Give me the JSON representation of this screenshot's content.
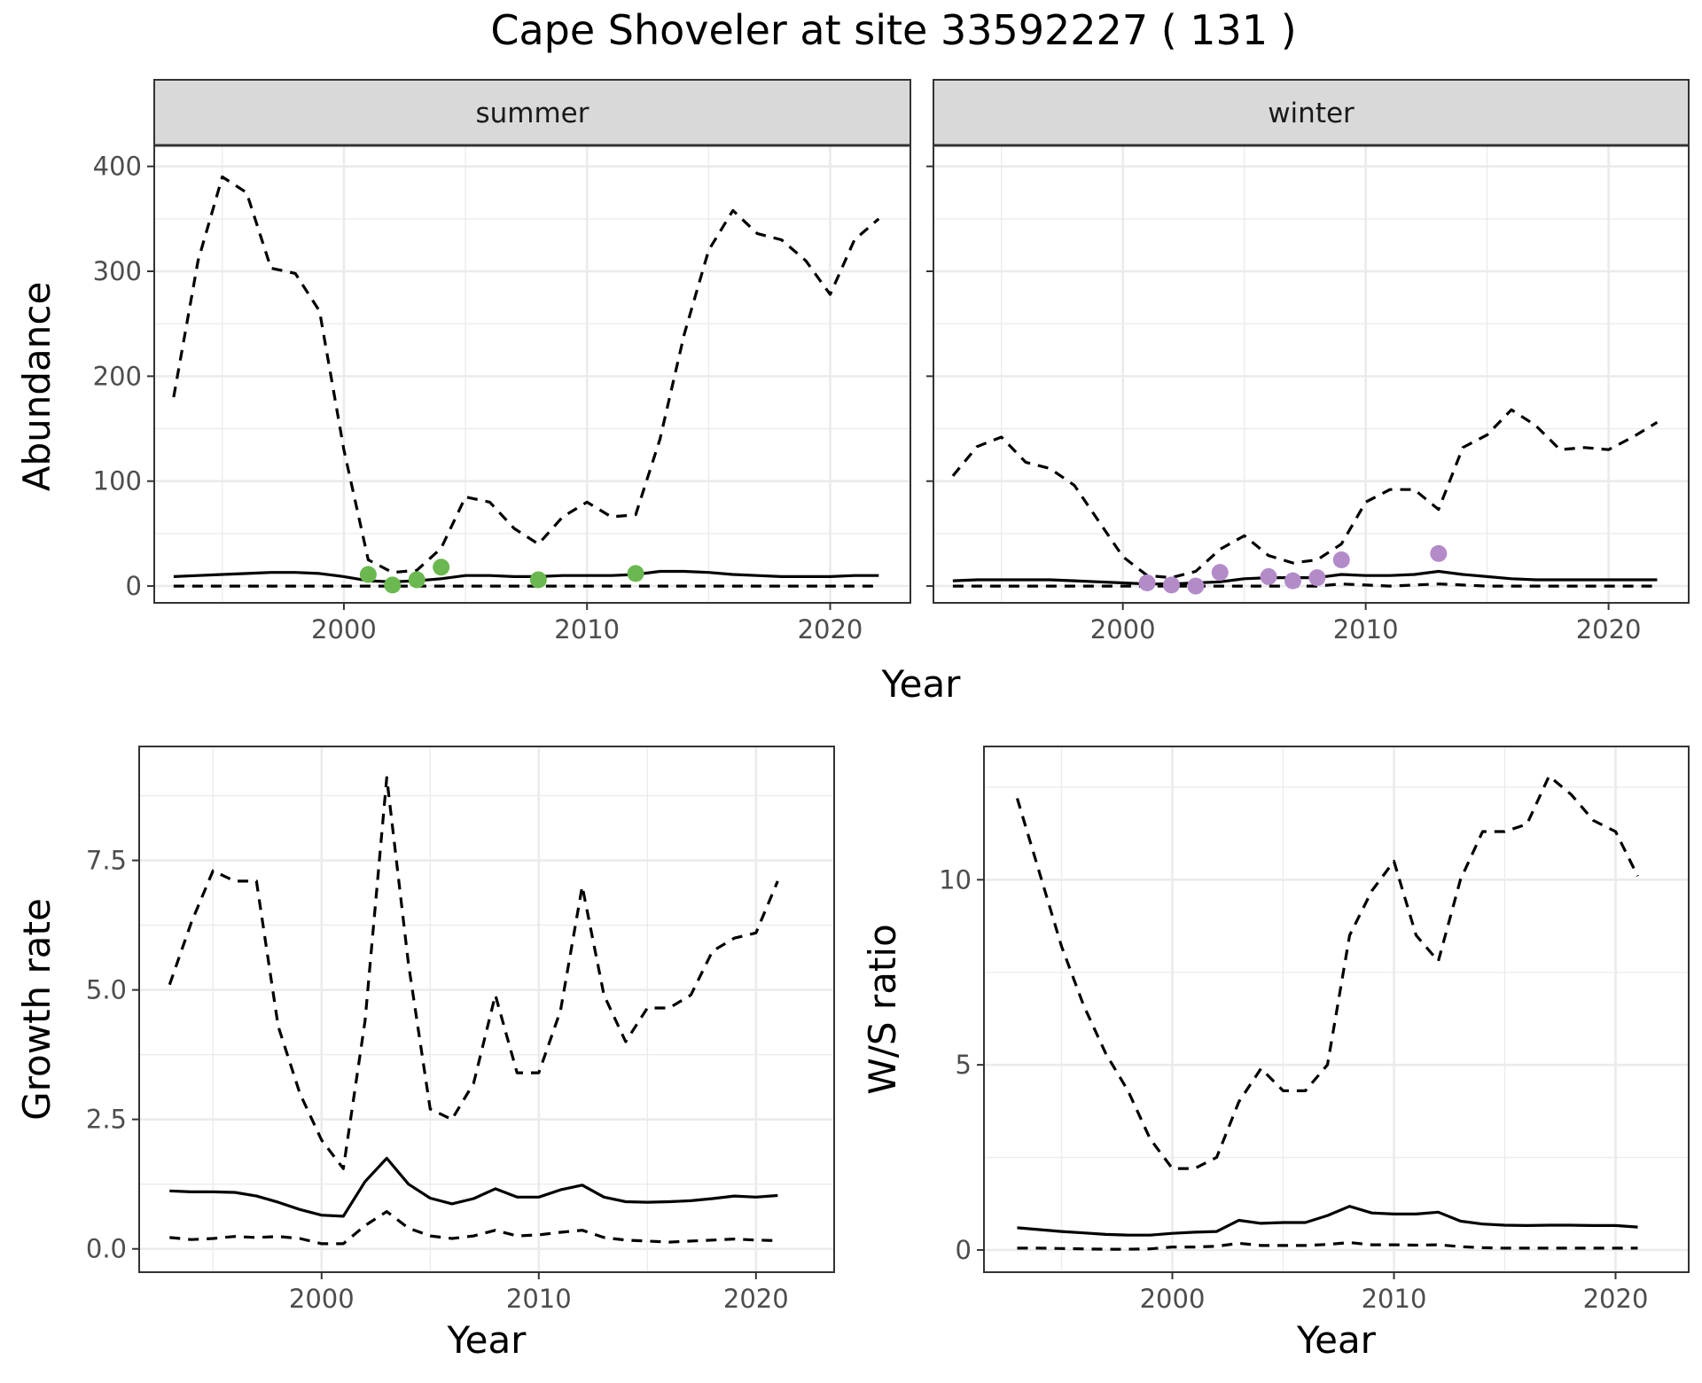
{
  "figure": {
    "title": "Cape Shoveler at site 33592227 ( 131 )"
  },
  "chart_data": [
    {
      "type": "line",
      "panel": "summer",
      "facet_label": "summer",
      "xlabel": "Year",
      "ylabel": "Abundance",
      "xlim": [
        1992.2,
        2023.3
      ],
      "ylim": [
        -16,
        420
      ],
      "xticks": [
        2000,
        2010,
        2020
      ],
      "yticks": [
        0,
        100,
        200,
        300,
        400
      ],
      "grid": true,
      "point_color": "#6ab84f",
      "series": [
        {
          "role": "mean",
          "style": "solid",
          "x": [
            1993,
            1994,
            1995,
            1996,
            1997,
            1998,
            1999,
            2000,
            2001,
            2002,
            2003,
            2004,
            2005,
            2006,
            2007,
            2008,
            2009,
            2010,
            2011,
            2012,
            2013,
            2014,
            2015,
            2016,
            2017,
            2018,
            2019,
            2020,
            2021,
            2022
          ],
          "y": [
            9,
            10,
            11,
            12,
            13,
            13,
            12,
            9,
            5,
            4,
            5,
            7,
            10,
            10,
            9,
            9,
            10,
            10,
            10,
            11,
            14,
            14,
            13,
            11,
            10,
            9,
            9,
            9,
            10,
            10
          ]
        },
        {
          "role": "upper",
          "style": "dashed",
          "x": [
            1993,
            1994,
            1995,
            1996,
            1997,
            1998,
            1999,
            2000,
            2001,
            2002,
            2003,
            2004,
            2005,
            2006,
            2007,
            2008,
            2009,
            2010,
            2011,
            2012,
            2013,
            2014,
            2015,
            2016,
            2017,
            2018,
            2019,
            2020,
            2021,
            2022
          ],
          "y": [
            180,
            310,
            390,
            375,
            303,
            298,
            262,
            130,
            25,
            13,
            15,
            36,
            85,
            80,
            55,
            40,
            66,
            80,
            66,
            68,
            140,
            240,
            320,
            358,
            336,
            330,
            310,
            278,
            330,
            350
          ]
        },
        {
          "role": "lower",
          "style": "dashed",
          "x": [
            1993,
            1994,
            1995,
            1996,
            1997,
            1998,
            1999,
            2000,
            2001,
            2002,
            2003,
            2004,
            2005,
            2006,
            2007,
            2008,
            2009,
            2010,
            2011,
            2012,
            2013,
            2014,
            2015,
            2016,
            2017,
            2018,
            2019,
            2020,
            2021,
            2022
          ],
          "y": [
            0,
            0,
            0,
            0,
            0,
            0,
            0,
            0,
            0,
            0,
            0,
            0,
            0,
            0,
            0,
            0,
            0,
            0,
            0,
            0,
            0,
            0,
            0,
            0,
            0,
            0,
            0,
            0,
            0,
            0
          ]
        }
      ],
      "points": {
        "x": [
          2001,
          2002,
          2003,
          2004,
          2008,
          2012
        ],
        "y": [
          11,
          1,
          6,
          18,
          6,
          12
        ]
      }
    },
    {
      "type": "line",
      "panel": "winter",
      "facet_label": "winter",
      "xlabel": "Year",
      "ylabel": "Abundance",
      "xlim": [
        1992.2,
        2023.3
      ],
      "ylim": [
        -16,
        420
      ],
      "xticks": [
        2000,
        2010,
        2020
      ],
      "yticks": [
        0,
        100,
        200,
        300,
        400
      ],
      "grid": true,
      "point_color": "#b48bc9",
      "series": [
        {
          "role": "mean",
          "style": "solid",
          "x": [
            1993,
            1994,
            1995,
            1996,
            1997,
            1998,
            1999,
            2000,
            2001,
            2002,
            2003,
            2004,
            2005,
            2006,
            2007,
            2008,
            2009,
            2010,
            2011,
            2012,
            2013,
            2014,
            2015,
            2016,
            2017,
            2018,
            2019,
            2020,
            2021,
            2022
          ],
          "y": [
            5,
            6,
            6,
            6,
            6,
            5,
            4,
            3,
            2,
            2,
            3,
            4,
            7,
            8,
            8,
            8,
            11,
            10,
            10,
            11,
            14,
            11,
            9,
            7,
            6,
            6,
            6,
            6,
            6,
            6
          ]
        },
        {
          "role": "upper",
          "style": "dashed",
          "x": [
            1993,
            1994,
            1995,
            1996,
            1997,
            1998,
            1999,
            2000,
            2001,
            2002,
            2003,
            2004,
            2005,
            2006,
            2007,
            2008,
            2009,
            2010,
            2011,
            2012,
            2013,
            2014,
            2015,
            2016,
            2017,
            2018,
            2019,
            2020,
            2021,
            2022
          ],
          "y": [
            105,
            133,
            142,
            118,
            112,
            96,
            62,
            28,
            10,
            8,
            14,
            35,
            48,
            29,
            22,
            25,
            40,
            80,
            92,
            92,
            73,
            132,
            144,
            168,
            153,
            130,
            132,
            130,
            142,
            156
          ]
        },
        {
          "role": "lower",
          "style": "dashed",
          "x": [
            1993,
            1994,
            1995,
            1996,
            1997,
            1998,
            1999,
            2000,
            2001,
            2002,
            2003,
            2004,
            2005,
            2006,
            2007,
            2008,
            2009,
            2010,
            2011,
            2012,
            2013,
            2014,
            2015,
            2016,
            2017,
            2018,
            2019,
            2020,
            2021,
            2022
          ],
          "y": [
            0,
            0,
            0,
            0,
            0,
            0,
            0,
            0,
            0,
            0,
            0,
            0,
            0,
            0,
            0,
            0,
            2,
            1,
            0,
            1,
            2,
            1,
            0,
            0,
            0,
            0,
            0,
            0,
            0,
            0
          ]
        }
      ],
      "points": {
        "x": [
          2001,
          2002,
          2003,
          2004,
          2006,
          2007,
          2008,
          2009,
          2013
        ],
        "y": [
          3,
          1,
          0,
          13,
          9,
          5,
          8,
          25,
          31
        ]
      }
    },
    {
      "type": "line",
      "panel": "growth",
      "xlabel": "Year",
      "ylabel": "Growth rate",
      "xlim": [
        1991.6,
        2023.6
      ],
      "ylim": [
        -0.45,
        9.7
      ],
      "xticks": [
        2000,
        2010,
        2020
      ],
      "yticks": [
        0.0,
        2.5,
        5.0,
        7.5
      ],
      "yticklabels": [
        "0.0",
        "2.5",
        "5.0",
        "7.5"
      ],
      "grid": true,
      "series": [
        {
          "role": "mean",
          "style": "solid",
          "x": [
            1993,
            1994,
            1995,
            1996,
            1997,
            1998,
            1999,
            2000,
            2001,
            2002,
            2003,
            2004,
            2005,
            2006,
            2007,
            2008,
            2009,
            2010,
            2011,
            2012,
            2013,
            2014,
            2015,
            2016,
            2017,
            2018,
            2019,
            2020,
            2021
          ],
          "y": [
            1.12,
            1.1,
            1.1,
            1.09,
            1.02,
            0.9,
            0.76,
            0.65,
            0.63,
            1.3,
            1.75,
            1.25,
            0.98,
            0.87,
            0.97,
            1.16,
            1.0,
            1.0,
            1.14,
            1.23,
            1.0,
            0.91,
            0.9,
            0.91,
            0.93,
            0.97,
            1.02,
            1.0,
            1.03
          ]
        },
        {
          "role": "upper",
          "style": "dashed",
          "x": [
            1993,
            1994,
            1995,
            1996,
            1997,
            1998,
            1999,
            2000,
            2001,
            2002,
            2003,
            2004,
            2005,
            2006,
            2007,
            2008,
            2009,
            2010,
            2011,
            2012,
            2013,
            2014,
            2015,
            2016,
            2017,
            2018,
            2019,
            2020,
            2021
          ],
          "y": [
            5.1,
            6.3,
            7.3,
            7.1,
            7.1,
            4.3,
            3.0,
            2.1,
            1.55,
            4.4,
            9.1,
            5.5,
            2.7,
            2.5,
            3.2,
            4.9,
            3.4,
            3.4,
            4.6,
            7.0,
            4.9,
            4.0,
            4.65,
            4.65,
            4.9,
            5.75,
            6.0,
            6.1,
            7.1
          ]
        },
        {
          "role": "lower",
          "style": "dashed",
          "x": [
            1993,
            1994,
            1995,
            1996,
            1997,
            1998,
            1999,
            2000,
            2001,
            2002,
            2003,
            2004,
            2005,
            2006,
            2007,
            2008,
            2009,
            2010,
            2011,
            2012,
            2013,
            2014,
            2015,
            2016,
            2017,
            2018,
            2019,
            2020,
            2021
          ],
          "y": [
            0.22,
            0.18,
            0.2,
            0.24,
            0.22,
            0.24,
            0.2,
            0.1,
            0.1,
            0.45,
            0.72,
            0.4,
            0.25,
            0.2,
            0.25,
            0.36,
            0.25,
            0.27,
            0.32,
            0.36,
            0.22,
            0.17,
            0.15,
            0.13,
            0.15,
            0.17,
            0.19,
            0.17,
            0.16
          ]
        }
      ]
    },
    {
      "type": "line",
      "panel": "ratio",
      "xlabel": "Year",
      "ylabel": "W/S ratio",
      "xlim": [
        1991.5,
        2023.3
      ],
      "ylim": [
        -0.6,
        13.6
      ],
      "xticks": [
        2000,
        2010,
        2020
      ],
      "yticks": [
        0,
        5,
        10
      ],
      "grid": true,
      "series": [
        {
          "role": "mean",
          "style": "solid",
          "x": [
            1993,
            1994,
            1995,
            1996,
            1997,
            1998,
            1999,
            2000,
            2001,
            2002,
            2003,
            2004,
            2005,
            2006,
            2007,
            2008,
            2009,
            2010,
            2011,
            2012,
            2013,
            2014,
            2015,
            2016,
            2017,
            2018,
            2019,
            2020,
            2021
          ],
          "y": [
            0.6,
            0.55,
            0.5,
            0.46,
            0.42,
            0.4,
            0.4,
            0.45,
            0.48,
            0.5,
            0.8,
            0.72,
            0.74,
            0.74,
            0.93,
            1.18,
            1.0,
            0.97,
            0.97,
            1.02,
            0.78,
            0.7,
            0.67,
            0.66,
            0.67,
            0.67,
            0.66,
            0.66,
            0.62
          ]
        },
        {
          "role": "upper",
          "style": "dashed",
          "x": [
            1993,
            1994,
            1995,
            1996,
            1997,
            1998,
            1999,
            2000,
            2001,
            2002,
            2003,
            2004,
            2005,
            2006,
            2007,
            2008,
            2009,
            2010,
            2011,
            2012,
            2013,
            2014,
            2015,
            2016,
            2017,
            2018,
            2019,
            2020,
            2021
          ],
          "y": [
            12.2,
            10.2,
            8.2,
            6.6,
            5.3,
            4.3,
            3.0,
            2.2,
            2.2,
            2.5,
            4.0,
            4.9,
            4.3,
            4.3,
            5.0,
            8.5,
            9.7,
            10.5,
            8.5,
            7.8,
            10.0,
            11.3,
            11.3,
            11.5,
            12.8,
            12.3,
            11.6,
            11.3,
            10.1
          ]
        },
        {
          "role": "lower",
          "style": "dashed",
          "x": [
            1993,
            1994,
            1995,
            1996,
            1997,
            1998,
            1999,
            2000,
            2001,
            2002,
            2003,
            2004,
            2005,
            2006,
            2007,
            2008,
            2009,
            2010,
            2011,
            2012,
            2013,
            2014,
            2015,
            2016,
            2017,
            2018,
            2019,
            2020,
            2021
          ],
          "y": [
            0.05,
            0.05,
            0.04,
            0.03,
            0.02,
            0.02,
            0.03,
            0.08,
            0.08,
            0.1,
            0.18,
            0.12,
            0.12,
            0.12,
            0.15,
            0.2,
            0.14,
            0.14,
            0.13,
            0.14,
            0.09,
            0.06,
            0.05,
            0.05,
            0.05,
            0.05,
            0.05,
            0.05,
            0.05
          ]
        }
      ]
    }
  ]
}
